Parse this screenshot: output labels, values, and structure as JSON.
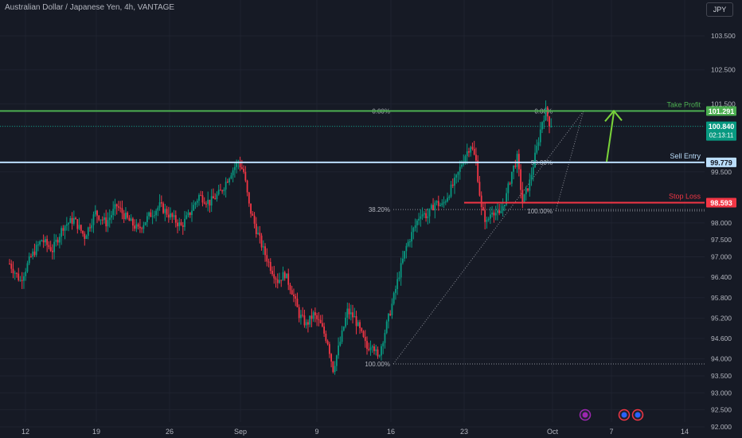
{
  "header": {
    "title": "Australian Dollar / Japanese Yen, 4h, VANTAGE",
    "currency_button": "JPY"
  },
  "colors": {
    "background": "#161a25",
    "grid": "#1f2330",
    "up_candle": "#089981",
    "down_candle": "#f23645",
    "take_profit": "#4caf50",
    "sell_entry": "#bbdefb",
    "stop_loss": "#f23645",
    "arrow": "#7ad43a"
  },
  "chart_data": {
    "type": "candlestick",
    "title": "Australian Dollar / Japanese Yen, 4h, VANTAGE",
    "x_ticks": [
      "12",
      "19",
      "26",
      "Sep",
      "9",
      "16",
      "23",
      "Oct",
      "7",
      "14"
    ],
    "y_ticks": [
      103.5,
      102.5,
      101.5,
      100.84,
      99.5,
      98,
      97.5,
      97,
      96.4,
      95.8,
      95.2,
      94.6,
      94,
      93.5,
      93,
      92.5,
      92
    ],
    "y_tick_labels": [
      "103.500",
      "102.500",
      "101.500",
      "",
      "99.500",
      "98.000",
      "97.500",
      "97.000",
      "96.400",
      "95.800",
      "95.200",
      "94.600",
      "94.000",
      "93.500",
      "93.000",
      "92.500",
      "92.000"
    ],
    "ylim": [
      92,
      104
    ],
    "current_price": {
      "value": "100.840",
      "countdown": "02:13:11"
    },
    "levels": [
      {
        "name": "Take Profit",
        "price": "101.291",
        "value": 101.291
      },
      {
        "name": "Sell Entry",
        "price": "99.779",
        "value": 99.779
      },
      {
        "name": "Stop Loss",
        "price": "98.593",
        "value": 98.593
      }
    ],
    "fib_1": {
      "labels": [
        "0.00%",
        "38.20%",
        "100.00%"
      ],
      "levels": [
        101.291,
        98.39,
        93.85
      ]
    },
    "fib_2": {
      "labels": [
        "0.00%",
        "50.00%",
        "100.00%"
      ],
      "levels": [
        101.291,
        99.779,
        98.35
      ]
    },
    "price_path": [
      [
        0,
        96.8
      ],
      [
        6,
        96.3
      ],
      [
        12,
        97.0
      ],
      [
        18,
        97.5
      ],
      [
        24,
        97.2
      ],
      [
        30,
        97.9
      ],
      [
        36,
        98.1
      ],
      [
        42,
        97.6
      ],
      [
        48,
        98.3
      ],
      [
        54,
        98.0
      ],
      [
        60,
        98.5
      ],
      [
        66,
        98.1
      ],
      [
        72,
        97.8
      ],
      [
        78,
        98.2
      ],
      [
        84,
        98.5
      ],
      [
        90,
        98.2
      ],
      [
        96,
        97.9
      ],
      [
        100,
        98.2
      ],
      [
        106,
        98.8
      ],
      [
        112,
        98.6
      ],
      [
        118,
        98.9
      ],
      [
        124,
        99.5
      ],
      [
        128,
        99.8
      ],
      [
        131,
        99.5
      ],
      [
        134,
        98.5
      ],
      [
        138,
        97.8
      ],
      [
        142,
        97.2
      ],
      [
        146,
        96.7
      ],
      [
        150,
        96.3
      ],
      [
        154,
        96.5
      ],
      [
        158,
        96.0
      ],
      [
        162,
        95.3
      ],
      [
        166,
        95.0
      ],
      [
        170,
        95.3
      ],
      [
        174,
        95.0
      ],
      [
        178,
        94.5
      ],
      [
        181,
        93.7
      ],
      [
        185,
        94.5
      ],
      [
        189,
        95.4
      ],
      [
        193,
        95.2
      ],
      [
        197,
        94.7
      ],
      [
        200,
        94.3
      ],
      [
        203,
        94.5
      ],
      [
        206,
        94.0
      ],
      [
        210,
        94.8
      ],
      [
        214,
        95.6
      ],
      [
        218,
        96.5
      ],
      [
        222,
        97.3
      ],
      [
        226,
        97.8
      ],
      [
        230,
        98.3
      ],
      [
        234,
        98.2
      ],
      [
        238,
        98.6
      ],
      [
        242,
        98.5
      ],
      [
        246,
        98.9
      ],
      [
        250,
        99.3
      ],
      [
        254,
        99.9
      ],
      [
        258,
        100.3
      ],
      [
        261,
        99.8
      ],
      [
        264,
        98.4
      ],
      [
        267,
        98.0
      ],
      [
        270,
        98.4
      ],
      [
        274,
        98.2
      ],
      [
        278,
        98.8
      ],
      [
        281,
        99.5
      ],
      [
        284,
        99.9
      ],
      [
        287,
        98.6
      ],
      [
        291,
        99.2
      ],
      [
        295,
        100.2
      ],
      [
        298,
        101.0
      ],
      [
        300,
        101.291
      ],
      [
        303,
        100.84
      ]
    ],
    "arrow_annotation": {
      "from": 99.8,
      "to": 101.291
    }
  }
}
